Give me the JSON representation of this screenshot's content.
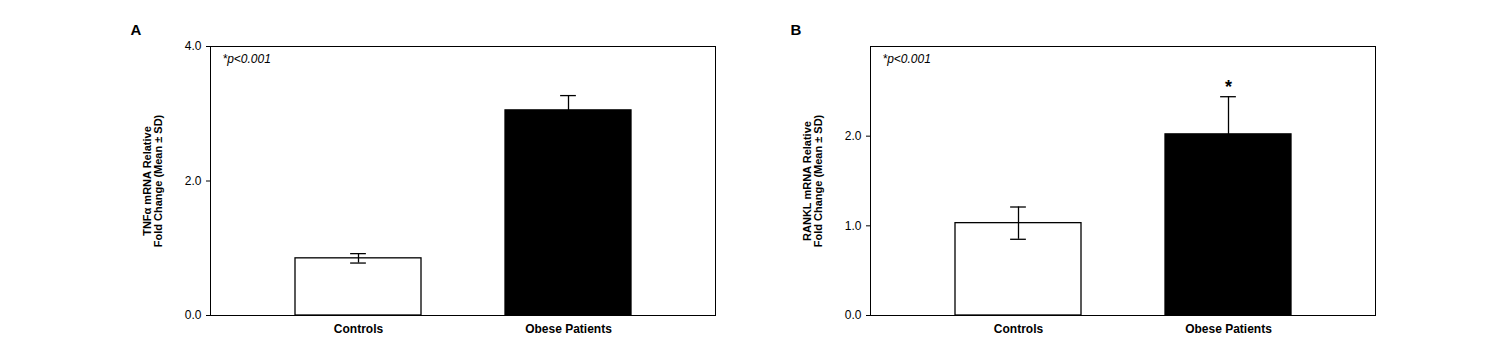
{
  "chart_data": [
    {
      "type": "bar",
      "title": "A",
      "categories": [
        "Controls",
        "Obese Patients"
      ],
      "values": [
        0.85,
        3.05
      ],
      "errors": [
        0.07,
        0.22
      ],
      "colors": [
        "#ffffff",
        "#000000"
      ],
      "ylabel": "TNFα mRNA Relative\nFold Change (Mean ± SD)",
      "ylim": [
        0,
        4
      ],
      "yticks": [
        0,
        2,
        4
      ],
      "annotation": "*p<0.001",
      "grid": false
    },
    {
      "type": "bar",
      "title": "B",
      "categories": [
        "Controls",
        "Obese Patients"
      ],
      "values": [
        1.03,
        2.02
      ],
      "errors": [
        0.18,
        0.42
      ],
      "colors": [
        "#ffffff",
        "#000000"
      ],
      "ylabel": "RANKL mRNA Relative\nFold Change (Mean ± SD)",
      "ylim": [
        0,
        3
      ],
      "yticks": [
        0,
        1,
        2
      ],
      "annotation": "*p<0.001",
      "bar_annotations": [
        null,
        "*"
      ],
      "grid": false
    }
  ]
}
